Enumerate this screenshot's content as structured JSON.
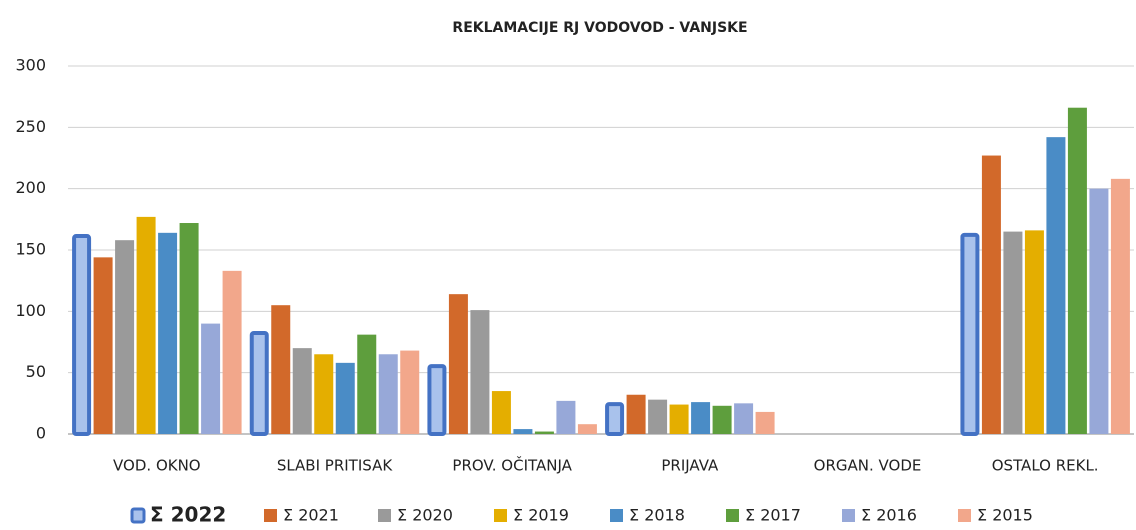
{
  "chart_data": {
    "type": "bar",
    "title": "REKLAMACIJE RJ VODOVOD - VANJSKE",
    "categories": [
      "VOD. OKNO",
      "SLABI PRITISAK",
      "PROV. OČITANJA",
      "PRIJAVA",
      "ORGAN. VODE",
      "OSTALO REKL."
    ],
    "series": [
      {
        "name": "Σ 2022",
        "color": "#4472c4",
        "values": [
          163,
          84,
          57,
          26,
          0,
          164
        ]
      },
      {
        "name": "Σ 2021",
        "color": "#d2692a",
        "values": [
          144,
          105,
          114,
          32,
          0,
          227
        ]
      },
      {
        "name": "Σ 2020",
        "color": "#9a9a9a",
        "values": [
          158,
          70,
          101,
          28,
          0,
          165
        ]
      },
      {
        "name": "Σ 2019",
        "color": "#e4ae00",
        "values": [
          177,
          65,
          35,
          24,
          0,
          166
        ]
      },
      {
        "name": "Σ 2018",
        "color": "#4a8cc6",
        "values": [
          164,
          58,
          4,
          26,
          0,
          242
        ]
      },
      {
        "name": "Σ 2017",
        "color": "#5e9e3d",
        "values": [
          172,
          81,
          2,
          23,
          0,
          266
        ]
      },
      {
        "name": "Σ 2016",
        "color": "#97a8d8",
        "values": [
          90,
          65,
          27,
          25,
          0,
          200
        ]
      },
      {
        "name": "Σ 2015",
        "color": "#f2a78b",
        "values": [
          133,
          68,
          8,
          18,
          0,
          208
        ]
      }
    ],
    "ylim": [
      0,
      300
    ],
    "yticks": [
      0,
      50,
      100,
      150,
      200,
      250,
      300
    ],
    "grid": true
  }
}
